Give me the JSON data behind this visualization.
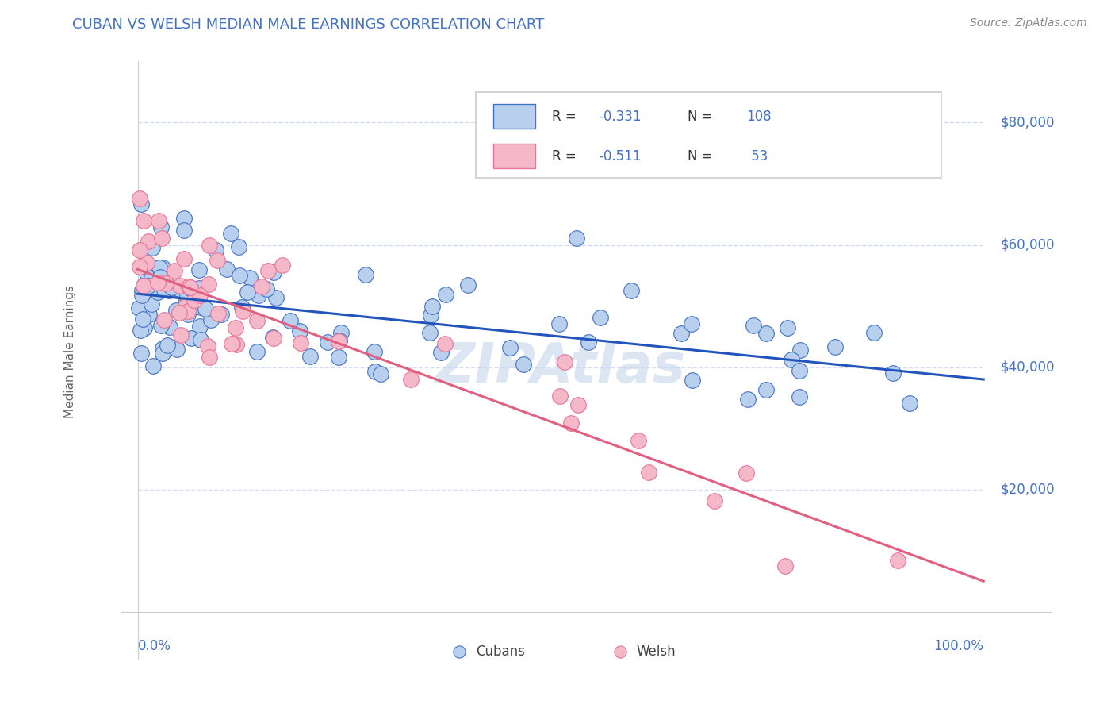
{
  "title": "CUBAN VS WELSH MEDIAN MALE EARNINGS CORRELATION CHART",
  "source": "Source: ZipAtlas.com",
  "ylabel": "Median Male Earnings",
  "title_color": "#4472c4",
  "source_color": "#888888",
  "tick_color": "#4472c4",
  "background_color": "#ffffff",
  "grid_color": "#d0ddf5",
  "watermark": "ZIPAtlas",
  "watermark_color": "#c5d5ea",
  "cubans": {
    "fill_color": "#b8d0ee",
    "edge_color": "#4472c4",
    "line_color": "#2255bb",
    "trendline_x": [
      0,
      100
    ],
    "trendline_y": [
      52000,
      38000
    ]
  },
  "welsh": {
    "fill_color": "#f5b8c8",
    "edge_color": "#e8759a",
    "line_color": "#e06080",
    "trendline_x": [
      0,
      100
    ],
    "trendline_y": [
      56000,
      5000
    ]
  },
  "ylim_data": [
    0,
    85000
  ],
  "xlim_data": [
    0,
    100
  ],
  "yticks": [
    20000,
    40000,
    60000,
    80000
  ],
  "ytick_labels": [
    "$20,000",
    "$40,000",
    "$60,000",
    "$80,000"
  ],
  "legend_r_cuban": "R = -0.331",
  "legend_n_cuban": "N = 108",
  "legend_r_welsh": "R = -0.511",
  "legend_n_welsh": "N =  53",
  "legend_r_color": "#333333",
  "legend_rval_color": "#4472c4",
  "legend_nval_color": "#4472c4",
  "bottom_legend_cubans": "Cubans",
  "bottom_legend_welsh": "Welsh"
}
